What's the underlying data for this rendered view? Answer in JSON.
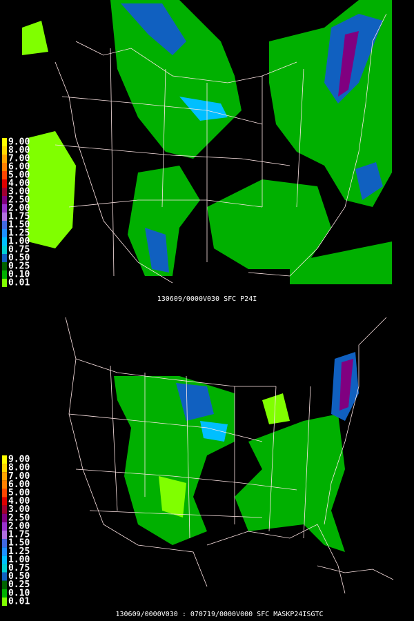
{
  "legend": {
    "items": [
      {
        "label": "9.00",
        "color": "#ffff00"
      },
      {
        "label": "8.00",
        "color": "#ffd700"
      },
      {
        "label": "7.00",
        "color": "#ffa500"
      },
      {
        "label": "6.00",
        "color": "#ff7f00"
      },
      {
        "label": "5.00",
        "color": "#ff4500"
      },
      {
        "label": "4.00",
        "color": "#dd0000"
      },
      {
        "label": "3.00",
        "color": "#a00030"
      },
      {
        "label": "2.50",
        "color": "#800080"
      },
      {
        "label": "2.00",
        "color": "#9932cc"
      },
      {
        "label": "1.75",
        "color": "#b070e0"
      },
      {
        "label": "1.50",
        "color": "#4169e1"
      },
      {
        "label": "1.25",
        "color": "#1e90ff"
      },
      {
        "label": "1.00",
        "color": "#00bfff"
      },
      {
        "label": "0.75",
        "color": "#00ced1"
      },
      {
        "label": "0.50",
        "color": "#1060c0"
      },
      {
        "label": "0.25",
        "color": "#006400"
      },
      {
        "label": "0.10",
        "color": "#00b000"
      },
      {
        "label": "0.01",
        "color": "#80ff00"
      }
    ]
  },
  "panels": [
    {
      "caption": "130609/0000V030   SFC   P24I"
    },
    {
      "caption": "130609/0000V030 : 070719/0000V000   SFC   MASKP24ISGTC"
    }
  ]
}
